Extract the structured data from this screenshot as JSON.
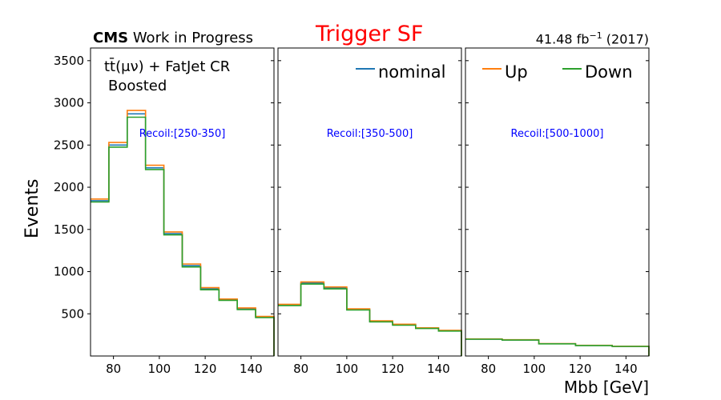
{
  "header": {
    "cms_bold": "CMS",
    "cms_rest": " Work in Progress",
    "title": "Trigger SF",
    "lumi_value": "41.48 fb",
    "lumi_exp": "−1",
    "lumi_year": " (2017)"
  },
  "region": {
    "line1": "tt̄(μν) + FatJet CR",
    "line2": "Boosted"
  },
  "colors": {
    "nominal": "#1f77b4",
    "up": "#ff7f0e",
    "down": "#2ca02c",
    "title": "#ff0000",
    "recoil": "#0000ff"
  },
  "chart_data": {
    "type": "step",
    "title": "Trigger SF",
    "xlabel": "Mbb [GeV]",
    "ylabel": "Events",
    "ylim": [
      0,
      3650
    ],
    "yticks": [
      500,
      1000,
      1500,
      2000,
      2500,
      3000,
      3500
    ],
    "xlim": [
      70,
      150
    ],
    "xticks": [
      80,
      100,
      120,
      140
    ],
    "legend": [
      "nominal",
      "Up",
      "Down"
    ],
    "panels": [
      {
        "label": "Recoil:[250-350]",
        "edges": [
          70,
          78,
          86,
          94,
          102,
          110,
          118,
          126,
          134,
          142,
          150
        ],
        "series": [
          {
            "name": "nominal",
            "values": [
              1840,
              2500,
              2870,
              2230,
              1450,
              1070,
              795,
              665,
              560,
              460
            ]
          },
          {
            "name": "Up",
            "values": [
              1860,
              2530,
              2910,
              2260,
              1470,
              1090,
              810,
              675,
              570,
              468
            ]
          },
          {
            "name": "Down",
            "values": [
              1825,
              2475,
              2830,
              2210,
              1435,
              1055,
              785,
              660,
              550,
              455
            ]
          }
        ]
      },
      {
        "label": "Recoil:[350-500]",
        "edges": [
          70,
          80,
          90,
          100,
          110,
          120,
          130,
          140,
          150
        ],
        "series": [
          {
            "name": "nominal",
            "values": [
              605,
              865,
              805,
              550,
              410,
              370,
              330,
              300
            ]
          },
          {
            "name": "Up",
            "values": [
              612,
              878,
              818,
              558,
              416,
              376,
              334,
              304
            ]
          },
          {
            "name": "Down",
            "values": [
              598,
              852,
              795,
              545,
              405,
              365,
              326,
              296
            ]
          }
        ]
      },
      {
        "label": "Recoil:[500-1000]",
        "edges": [
          70,
          86,
          102,
          118,
          134,
          150
        ],
        "series": [
          {
            "name": "nominal",
            "values": [
              200,
              190,
              145,
              125,
              115
            ]
          },
          {
            "name": "Up",
            "values": [
              202,
              192,
              147,
              126,
              116
            ]
          },
          {
            "name": "Down",
            "values": [
              199,
              189,
              144,
              124,
              114
            ]
          }
        ]
      }
    ]
  }
}
